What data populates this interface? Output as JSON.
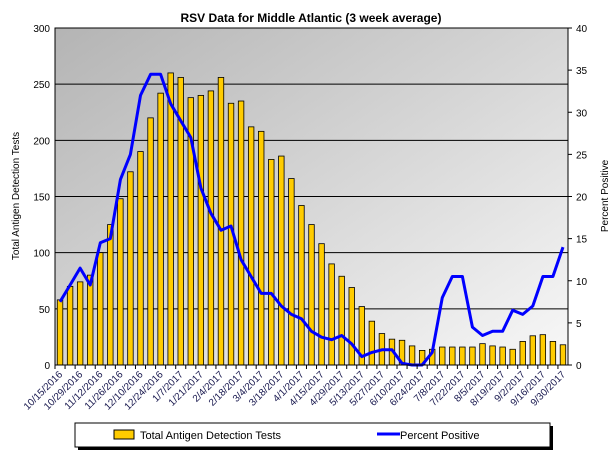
{
  "chart_data": {
    "type": "bar+line",
    "title": "RSV Data for Middle Atlantic (3 week average)",
    "ylabel": "Total Antigen Detection Tests",
    "y2label": "Percent Positive",
    "ylim": [
      0,
      300
    ],
    "yticks": [
      0,
      50,
      100,
      150,
      200,
      250,
      300
    ],
    "y2lim": [
      0,
      40
    ],
    "y2ticks": [
      0,
      5,
      10,
      15,
      20,
      25,
      30,
      35,
      40
    ],
    "grid": true,
    "legend_position": "bottom",
    "xtick_labels": [
      "10/15/2016",
      "10/29/2016",
      "11/12/2016",
      "11/26/2016",
      "12/10/2016",
      "12/24/2016",
      "1/7/2017",
      "1/21/2017",
      "2/4/2017",
      "2/18/2017",
      "3/4/2017",
      "3/18/2017",
      "4/1/2017",
      "4/15/2017",
      "4/29/2017",
      "5/13/2017",
      "5/27/2017",
      "6/10/2017",
      "6/24/2017",
      "7/8/2017",
      "7/22/2017",
      "8/5/2017",
      "8/19/2017",
      "9/2/2017",
      "9/16/2017",
      "9/30/2017"
    ],
    "series": [
      {
        "name": "Total Antigen Detection Tests",
        "type": "bar",
        "axis": "left",
        "color": "#FFCC00",
        "values": [
          58,
          70,
          74,
          80,
          100,
          125,
          148,
          172,
          190,
          220,
          242,
          260,
          256,
          238,
          240,
          244,
          256,
          233,
          235,
          212,
          208,
          183,
          186,
          166,
          142,
          125,
          108,
          90,
          79,
          69,
          52,
          39,
          28,
          23,
          22,
          17,
          13,
          14,
          16,
          16,
          16,
          16,
          19,
          17,
          16,
          14,
          21,
          26,
          27,
          21,
          18
        ]
      },
      {
        "name": "Percent Positive",
        "type": "line",
        "axis": "right",
        "color": "#0000FF",
        "values": [
          7.5,
          9.5,
          11.5,
          9.5,
          14.5,
          15,
          22,
          25,
          32,
          34.5,
          34.5,
          31,
          29,
          27,
          21,
          18,
          16,
          16.5,
          12.5,
          10.5,
          8.5,
          8.5,
          7,
          6,
          5.5,
          4,
          3.3,
          3,
          3.5,
          2.5,
          1,
          1.5,
          1.8,
          1.8,
          0.2,
          0,
          0,
          1.5,
          8,
          10.5,
          10.5,
          4.5,
          3.5,
          4,
          4,
          6.5,
          6,
          7,
          10.5,
          10.5,
          14
        ]
      }
    ]
  }
}
